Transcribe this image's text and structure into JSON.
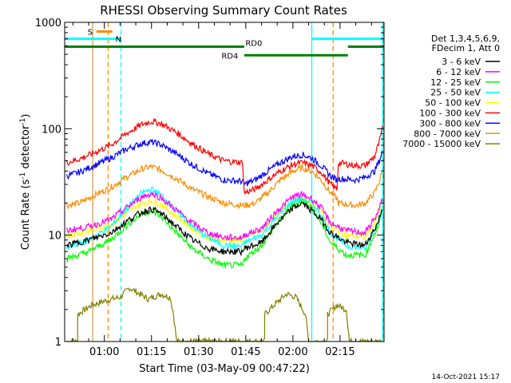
{
  "chart_data": {
    "type": "line",
    "title": "RHESSI Observing Summary Count Rates",
    "xlabel": "Start Time (03-May-09 00:47:22)",
    "ylabel_prefix": "Count Rate (s",
    "ylabel_sup1": "-1",
    "ylabel_mid": " detector",
    "ylabel_sup2": "-1",
    "ylabel_suffix": ")",
    "x_range_minutes": [
      47.37,
      149.0
    ],
    "y_scale": "log",
    "ylim": [
      1,
      1000
    ],
    "x_ticks": [
      {
        "minute": 60,
        "label": "01:00"
      },
      {
        "minute": 75,
        "label": "01:15"
      },
      {
        "minute": 90,
        "label": "01:30"
      },
      {
        "minute": 105,
        "label": "01:45"
      },
      {
        "minute": 120,
        "label": "02:00"
      },
      {
        "minute": 135,
        "label": "02:15"
      }
    ],
    "y_ticks": [
      {
        "value": 1,
        "label": "1"
      },
      {
        "value": 10,
        "label": "10"
      },
      {
        "value": 100,
        "label": "100"
      },
      {
        "value": 1000,
        "label": "1000"
      }
    ],
    "legend_header": [
      "Det 1,3,4,5,6,9,",
      "FDecim 1, Att 0"
    ],
    "series": [
      {
        "name": "3 - 6 keV",
        "color": "#000000",
        "points": [
          [
            48,
            8
          ],
          [
            55,
            9
          ],
          [
            62,
            10.5
          ],
          [
            68,
            14
          ],
          [
            72,
            16.5
          ],
          [
            75,
            17.5
          ],
          [
            78,
            16
          ],
          [
            83,
            12
          ],
          [
            88,
            9
          ],
          [
            93,
            7.5
          ],
          [
            98,
            7
          ],
          [
            104,
            7
          ],
          [
            104.5,
            7.5
          ],
          [
            110,
            8.5
          ],
          [
            115,
            13
          ],
          [
            120,
            18
          ],
          [
            123,
            20
          ],
          [
            126,
            17
          ],
          [
            129,
            14
          ],
          [
            132,
            10.5
          ],
          [
            137,
            8.5
          ],
          [
            143,
            8
          ],
          [
            147,
            13
          ],
          [
            148.5,
            18
          ]
        ]
      },
      {
        "name": "6 - 12 keV",
        "color": "#ff00ff",
        "points": [
          [
            48,
            11
          ],
          [
            55,
            12
          ],
          [
            62,
            14
          ],
          [
            68,
            19
          ],
          [
            72,
            23
          ],
          [
            75,
            24.5
          ],
          [
            78,
            22.5
          ],
          [
            83,
            17
          ],
          [
            88,
            13
          ],
          [
            93,
            10.5
          ],
          [
            98,
            9.5
          ],
          [
            104,
            9.5
          ],
          [
            104.5,
            10
          ],
          [
            110,
            11.5
          ],
          [
            115,
            17
          ],
          [
            120,
            23
          ],
          [
            123,
            24
          ],
          [
            126,
            22
          ],
          [
            129,
            18
          ],
          [
            132,
            13
          ],
          [
            137,
            11
          ],
          [
            143,
            10.5
          ],
          [
            147,
            16
          ],
          [
            148.5,
            22
          ]
        ]
      },
      {
        "name": "12 - 25 keV",
        "color": "#00ff00",
        "points": [
          [
            48,
            6
          ],
          [
            55,
            7
          ],
          [
            62,
            9
          ],
          [
            68,
            13
          ],
          [
            72,
            16
          ],
          [
            75,
            17
          ],
          [
            78,
            15
          ],
          [
            83,
            10.5
          ],
          [
            88,
            7.5
          ],
          [
            93,
            6
          ],
          [
            98,
            5.2
          ],
          [
            104,
            5.2
          ],
          [
            104.5,
            6
          ],
          [
            110,
            8
          ],
          [
            115,
            13
          ],
          [
            120,
            19
          ],
          [
            123,
            21
          ],
          [
            126,
            18
          ],
          [
            129,
            13
          ],
          [
            132,
            8.5
          ],
          [
            137,
            6.5
          ],
          [
            143,
            6.5
          ],
          [
            147,
            12
          ],
          [
            148.5,
            17
          ]
        ]
      },
      {
        "name": "25 - 50 keV",
        "color": "#00ffff",
        "points": [
          [
            48,
            7.5
          ],
          [
            55,
            9
          ],
          [
            62,
            12
          ],
          [
            68,
            19
          ],
          [
            72,
            25
          ],
          [
            75,
            27
          ],
          [
            78,
            24
          ],
          [
            83,
            17
          ],
          [
            88,
            12
          ],
          [
            93,
            9.5
          ],
          [
            98,
            8
          ],
          [
            104,
            7.8
          ],
          [
            104.5,
            8.5
          ],
          [
            110,
            10
          ],
          [
            115,
            15
          ],
          [
            120,
            21
          ],
          [
            123,
            22
          ],
          [
            126,
            20
          ],
          [
            129,
            15.5
          ],
          [
            132,
            10.5
          ],
          [
            137,
            8
          ],
          [
            143,
            7.5
          ],
          [
            147,
            13
          ],
          [
            148.5,
            18
          ]
        ]
      },
      {
        "name": "50 - 100 keV",
        "color": "#ffff00",
        "points": [
          [
            48,
            10
          ],
          [
            55,
            11
          ],
          [
            62,
            12.5
          ],
          [
            68,
            17
          ],
          [
            72,
            20
          ],
          [
            75,
            21
          ],
          [
            78,
            19.5
          ],
          [
            83,
            15
          ],
          [
            88,
            11.5
          ],
          [
            93,
            9.5
          ],
          [
            98,
            9
          ],
          [
            104,
            9
          ],
          [
            104.5,
            9.5
          ],
          [
            110,
            11
          ],
          [
            115,
            16
          ],
          [
            120,
            21
          ],
          [
            123,
            22
          ],
          [
            126,
            20
          ],
          [
            129,
            16.5
          ],
          [
            132,
            12
          ],
          [
            137,
            10
          ],
          [
            143,
            9.5
          ],
          [
            147,
            15
          ],
          [
            148.5,
            20
          ]
        ]
      },
      {
        "name": "100 - 300 keV",
        "color": "#ff0000",
        "points": [
          [
            48,
            48
          ],
          [
            52,
            52
          ],
          [
            56,
            58
          ],
          [
            62,
            70
          ],
          [
            67,
            90
          ],
          [
            72,
            110
          ],
          [
            75,
            117
          ],
          [
            78,
            112
          ],
          [
            83,
            92
          ],
          [
            88,
            72
          ],
          [
            93,
            58
          ],
          [
            98,
            50
          ],
          [
            104,
            48
          ],
          [
            104.5,
            25
          ],
          [
            108,
            27
          ],
          [
            112,
            33
          ],
          [
            116,
            40
          ],
          [
            120,
            46
          ],
          [
            123,
            48
          ],
          [
            126,
            45
          ],
          [
            129,
            39
          ],
          [
            132,
            30
          ],
          [
            134,
            27
          ],
          [
            134.5,
            48
          ],
          [
            140,
            45
          ],
          [
            143,
            45
          ],
          [
            146,
            55
          ],
          [
            147.5,
            75
          ],
          [
            148.5,
            100
          ]
        ]
      },
      {
        "name": "300 - 800 keV",
        "color": "#0000ff",
        "points": [
          [
            48,
            36
          ],
          [
            52,
            39
          ],
          [
            56,
            44
          ],
          [
            62,
            53
          ],
          [
            67,
            64
          ],
          [
            72,
            73
          ],
          [
            75,
            75
          ],
          [
            78,
            71
          ],
          [
            83,
            58
          ],
          [
            88,
            46
          ],
          [
            93,
            38
          ],
          [
            98,
            33
          ],
          [
            104,
            32
          ],
          [
            104.5,
            30
          ],
          [
            108,
            33
          ],
          [
            112,
            40
          ],
          [
            116,
            48
          ],
          [
            120,
            55
          ],
          [
            123,
            57
          ],
          [
            126,
            53
          ],
          [
            129,
            45
          ],
          [
            132,
            36
          ],
          [
            134,
            33
          ],
          [
            134.5,
            34
          ],
          [
            140,
            33
          ],
          [
            143,
            35
          ],
          [
            146,
            40
          ],
          [
            147.5,
            50
          ],
          [
            148.5,
            62
          ]
        ]
      },
      {
        "name": "800 - 7000 keV",
        "color": "#ff8c00",
        "points": [
          [
            48,
            19
          ],
          [
            52,
            20
          ],
          [
            56,
            23
          ],
          [
            62,
            28
          ],
          [
            67,
            35
          ],
          [
            72,
            42
          ],
          [
            75,
            44
          ],
          [
            78,
            41
          ],
          [
            83,
            34
          ],
          [
            88,
            27
          ],
          [
            93,
            23
          ],
          [
            98,
            20
          ],
          [
            104,
            19
          ],
          [
            104.5,
            19
          ],
          [
            108,
            20
          ],
          [
            112,
            25
          ],
          [
            116,
            33
          ],
          [
            120,
            40
          ],
          [
            123,
            43
          ],
          [
            126,
            40
          ],
          [
            129,
            33
          ],
          [
            132,
            25
          ],
          [
            134,
            22
          ],
          [
            134.5,
            20
          ],
          [
            140,
            19
          ],
          [
            143,
            20
          ],
          [
            146,
            25
          ],
          [
            147.5,
            32
          ],
          [
            148.5,
            40
          ]
        ]
      },
      {
        "name": "7000 - 15000 keV",
        "color": "#808000",
        "points": [
          [
            48,
            1
          ],
          [
            51.5,
            1
          ],
          [
            51.5,
            1.8
          ],
          [
            56,
            2.2
          ],
          [
            62,
            2.5
          ],
          [
            65,
            2.6
          ],
          [
            68,
            3.2
          ],
          [
            74,
            2.5
          ],
          [
            78,
            2.8
          ],
          [
            81,
            2.6
          ],
          [
            82,
            1.8
          ],
          [
            83,
            1
          ],
          [
            111,
            1
          ],
          [
            111,
            1.8
          ],
          [
            114,
            2.2
          ],
          [
            118,
            2.8
          ],
          [
            121,
            2.6
          ],
          [
            124,
            1.8
          ],
          [
            125,
            1
          ],
          [
            131,
            1
          ],
          [
            131,
            1.8
          ],
          [
            134,
            2.2
          ],
          [
            137,
            2
          ],
          [
            138,
            1
          ],
          [
            149,
            1
          ]
        ]
      }
    ],
    "state_bars": [
      {
        "label": "S",
        "color": "#ff8c00",
        "start": 57.5,
        "end": 62.5,
        "y_value": 820
      },
      {
        "label": "N",
        "color": "#00ffff",
        "start": 47.4,
        "end": 65.5,
        "y_value": 700
      },
      {
        "label": "",
        "color": "#00ffff",
        "start": 126.0,
        "end": 149.0,
        "y_value": 700
      },
      {
        "label": "RD0",
        "color": "#008000",
        "start": 47.4,
        "end": 104.5,
        "y_value": 590
      },
      {
        "label": "",
        "color": "#008000",
        "start": 137.5,
        "end": 149.0,
        "y_value": 590
      },
      {
        "label": "RD4",
        "color": "#008000",
        "start": 104.5,
        "end": 137.5,
        "y_value": 490
      }
    ],
    "vlines": [
      {
        "minute": 56.3,
        "color": "#d2a050",
        "style": "solid"
      },
      {
        "minute": 61.2,
        "color": "#ff8c00",
        "style": "dash"
      },
      {
        "minute": 65.3,
        "color": "#00ffff",
        "style": "dash"
      },
      {
        "minute": 126.0,
        "color": "#00ffff",
        "style": "solid"
      },
      {
        "minute": 132.8,
        "color": "#ff8c00",
        "style": "dash"
      },
      {
        "minute": 148.6,
        "color": "#00ffff",
        "style": "solid"
      },
      {
        "minute": 148.9,
        "color": "#ff8c00",
        "style": "dash"
      }
    ]
  },
  "footer_timestamp": "14-Oct-2021 15:17"
}
